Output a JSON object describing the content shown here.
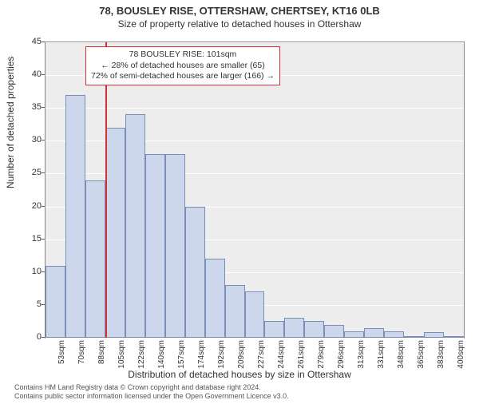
{
  "title_line1": "78, BOUSLEY RISE, OTTERSHAW, CHERTSEY, KT16 0LB",
  "title_line2": "Size of property relative to detached houses in Ottershaw",
  "ylabel": "Number of detached properties",
  "xlabel": "Distribution of detached houses by size in Ottershaw",
  "chart": {
    "type": "histogram",
    "ylim": [
      0,
      45
    ],
    "ytick_step": 5,
    "x_categories": [
      "53sqm",
      "70sqm",
      "88sqm",
      "105sqm",
      "122sqm",
      "140sqm",
      "157sqm",
      "174sqm",
      "192sqm",
      "209sqm",
      "227sqm",
      "244sqm",
      "261sqm",
      "279sqm",
      "296sqm",
      "313sqm",
      "331sqm",
      "348sqm",
      "365sqm",
      "383sqm",
      "400sqm"
    ],
    "values": [
      11,
      37,
      24,
      32,
      34,
      28,
      28,
      20,
      12,
      8,
      7,
      2.5,
      3,
      2.5,
      2,
      1,
      1.5,
      1,
      0,
      0.9,
      0
    ],
    "bar_fill": "#cdd7eb",
    "bar_border": "#7a8db8",
    "plot_bg": "#ededed",
    "grid_color": "#ffffff",
    "axis_color": "#888888",
    "reference_line_index": 3,
    "reference_color": "#d33333"
  },
  "annotation": {
    "line1": "78 BOUSLEY RISE: 101sqm",
    "line2": "← 28% of detached houses are smaller (65)",
    "line3": "72% of semi-detached houses are larger (166) →"
  },
  "footer_line1": "Contains HM Land Registry data © Crown copyright and database right 2024.",
  "footer_line2": "Contains public sector information licensed under the Open Government Licence v3.0."
}
